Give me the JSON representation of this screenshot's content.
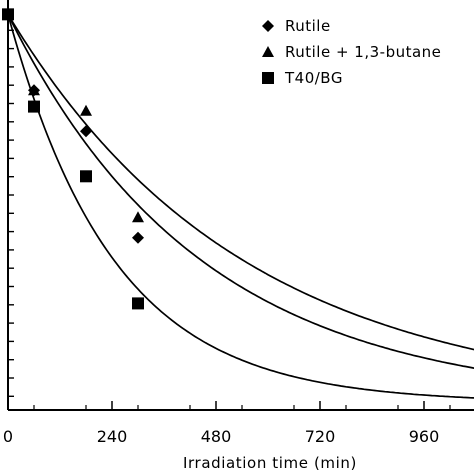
{
  "chart_data": {
    "type": "scatter",
    "xlabel": "Irradiation time (min)",
    "ylabel": "",
    "x_ticks": [
      0,
      240,
      480,
      720,
      960
    ],
    "xlim": [
      0,
      1080
    ],
    "ylim": [
      0,
      1
    ],
    "y_scale": "relative (no tick labels visible)",
    "grid": false,
    "legend_position": "top-right",
    "series": [
      {
        "name": "Rutile",
        "marker": "diamond",
        "points": [
          [
            0,
            0.965
          ],
          [
            60,
            0.78
          ],
          [
            180,
            0.68
          ],
          [
            300,
            0.42
          ]
        ],
        "fit_k": 0.00225
      },
      {
        "name": "Rutile + 1,3-butane",
        "marker": "triangle",
        "points": [
          [
            0,
            0.965
          ],
          [
            60,
            0.78
          ],
          [
            180,
            0.73
          ],
          [
            300,
            0.47
          ]
        ],
        "fit_k": 0.00185
      },
      {
        "name": "T40/BG",
        "marker": "square",
        "points": [
          [
            0,
            0.965
          ],
          [
            60,
            0.74
          ],
          [
            180,
            0.57
          ],
          [
            300,
            0.26
          ]
        ],
        "fit_k": 0.0041
      }
    ],
    "fit_curves": "exponential decay through each series"
  }
}
